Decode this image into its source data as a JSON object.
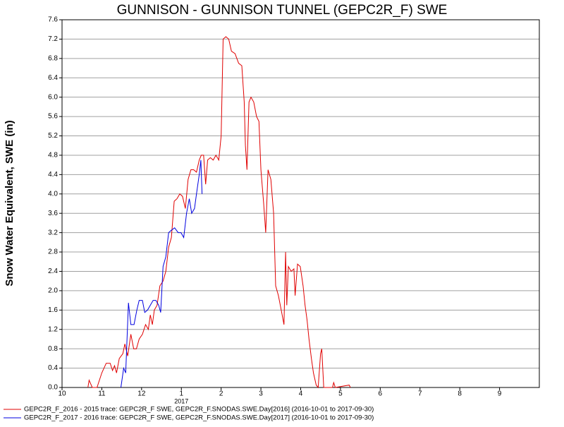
{
  "chart_data": {
    "type": "line",
    "title": "GUNNISON - GUNNISON TUNNEL (GEPC2R_F) SWE",
    "ylabel": "Snow Water Equivalent, SWE (in)",
    "xlim": [
      0,
      12
    ],
    "xticks": [
      {
        "value": 0,
        "label": "10"
      },
      {
        "value": 1,
        "label": "11"
      },
      {
        "value": 2,
        "label": "12"
      },
      {
        "value": 3,
        "label": "1"
      },
      {
        "value": 4,
        "label": "2"
      },
      {
        "value": 5,
        "label": "3"
      },
      {
        "value": 6,
        "label": "4"
      },
      {
        "value": 7,
        "label": "5"
      },
      {
        "value": 8,
        "label": "6"
      },
      {
        "value": 9,
        "label": "7"
      },
      {
        "value": 10,
        "label": "8"
      },
      {
        "value": 11,
        "label": "9"
      }
    ],
    "annotations": [
      {
        "text": "2017",
        "x": 3
      }
    ],
    "ylim": [
      0,
      7.6
    ],
    "yticks": [
      {
        "value": 0,
        "label": "0.0"
      },
      0.4,
      0.8,
      1.2,
      1.6,
      {
        "value": 2,
        "label": "2.0"
      },
      2.4,
      2.8,
      3.2,
      3.6,
      {
        "value": 4,
        "label": "4.0"
      },
      4.4,
      4.8,
      5.2,
      5.6,
      {
        "value": 6,
        "label": "6.0"
      },
      6.4,
      6.8,
      7.2,
      7.6
    ],
    "grid": true,
    "series": [
      {
        "name": "GEPC2R_F_2016 - 2015 trace: GEPC2R_F SWE, GEPC2R_F.SNODAS.SWE.Day[2016] (2016-10-01 to 2017-09-30)",
        "color": "#e00000",
        "x": [
          0.65,
          0.68,
          0.76,
          0.88,
          1.0,
          1.11,
          1.21,
          1.27,
          1.32,
          1.37,
          1.44,
          1.53,
          1.58,
          1.65,
          1.73,
          1.8,
          1.87,
          1.94,
          2.02,
          2.1,
          2.17,
          2.22,
          2.27,
          2.32,
          2.39,
          2.46,
          2.54,
          2.61,
          2.68,
          2.75,
          2.82,
          2.89,
          2.96,
          3.03,
          3.1,
          3.17,
          3.24,
          3.31,
          3.38,
          3.45,
          3.5,
          3.56,
          3.61,
          3.66,
          3.73,
          3.8,
          3.87,
          3.94,
          4.0,
          4.05,
          4.12,
          4.19,
          4.26,
          4.35,
          4.44,
          4.52,
          4.58,
          4.61,
          4.65,
          4.7,
          4.75,
          4.82,
          4.89,
          4.95,
          5.0,
          5.07,
          5.12,
          5.18,
          5.25,
          5.32,
          5.37,
          5.44,
          5.51,
          5.58,
          5.62,
          5.65,
          5.69,
          5.76,
          5.83,
          5.86,
          5.92,
          5.99,
          6.06,
          6.11,
          6.16,
          6.21,
          6.27,
          6.32,
          6.39,
          6.44,
          6.5,
          6.53,
          6.58,
          6.8,
          6.83,
          6.87,
          7.22,
          7.25
        ],
        "values": [
          0,
          0.15,
          0,
          0,
          0.3,
          0.5,
          0.5,
          0.35,
          0.45,
          0.3,
          0.6,
          0.7,
          0.9,
          0.65,
          1.1,
          0.8,
          0.8,
          1.0,
          1.1,
          1.3,
          1.2,
          1.5,
          1.3,
          1.6,
          1.7,
          2.1,
          2.2,
          2.4,
          2.9,
          3.1,
          3.85,
          3.9,
          4.0,
          3.95,
          3.7,
          4.3,
          4.5,
          4.5,
          4.45,
          4.7,
          4.8,
          4.8,
          4.2,
          4.7,
          4.75,
          4.7,
          4.8,
          4.7,
          5.2,
          7.2,
          7.25,
          7.2,
          6.95,
          6.9,
          6.7,
          6.65,
          5.9,
          5.0,
          4.5,
          5.9,
          6.0,
          5.9,
          5.6,
          5.5,
          4.5,
          3.8,
          3.2,
          4.5,
          4.3,
          3.6,
          2.1,
          1.9,
          1.6,
          1.3,
          2.8,
          1.7,
          2.5,
          2.4,
          2.45,
          1.9,
          2.55,
          2.5,
          2.1,
          1.7,
          1.4,
          1.0,
          0.6,
          0.3,
          0.05,
          0,
          0.7,
          0.8,
          0,
          0,
          0.1,
          0,
          0.05,
          0
        ]
      },
      {
        "name": "GEPC2R_F_2017 - 2016 trace: GEPC2R_F SWE, GEPC2R_F.SNODAS.SWE.Day[2017] (2016-10-01 to 2017-09-30)",
        "color": "#0000e0",
        "x": [
          1.48,
          1.55,
          1.6,
          1.67,
          1.73,
          1.81,
          1.88,
          1.94,
          2.02,
          2.08,
          2.15,
          2.22,
          2.29,
          2.36,
          2.43,
          2.48,
          2.54,
          2.61,
          2.68,
          2.75,
          2.83,
          2.92,
          2.99,
          3.06,
          3.13,
          3.2,
          3.26,
          3.33,
          3.38,
          3.45,
          3.49,
          3.52
        ],
        "values": [
          0,
          0.4,
          0.3,
          1.75,
          1.3,
          1.3,
          1.6,
          1.8,
          1.8,
          1.55,
          1.6,
          1.7,
          1.8,
          1.8,
          1.7,
          1.55,
          2.5,
          2.7,
          3.2,
          3.25,
          3.3,
          3.2,
          3.2,
          3.1,
          3.6,
          3.9,
          3.6,
          3.7,
          4.0,
          4.4,
          4.7,
          4.0
        ]
      }
    ]
  }
}
